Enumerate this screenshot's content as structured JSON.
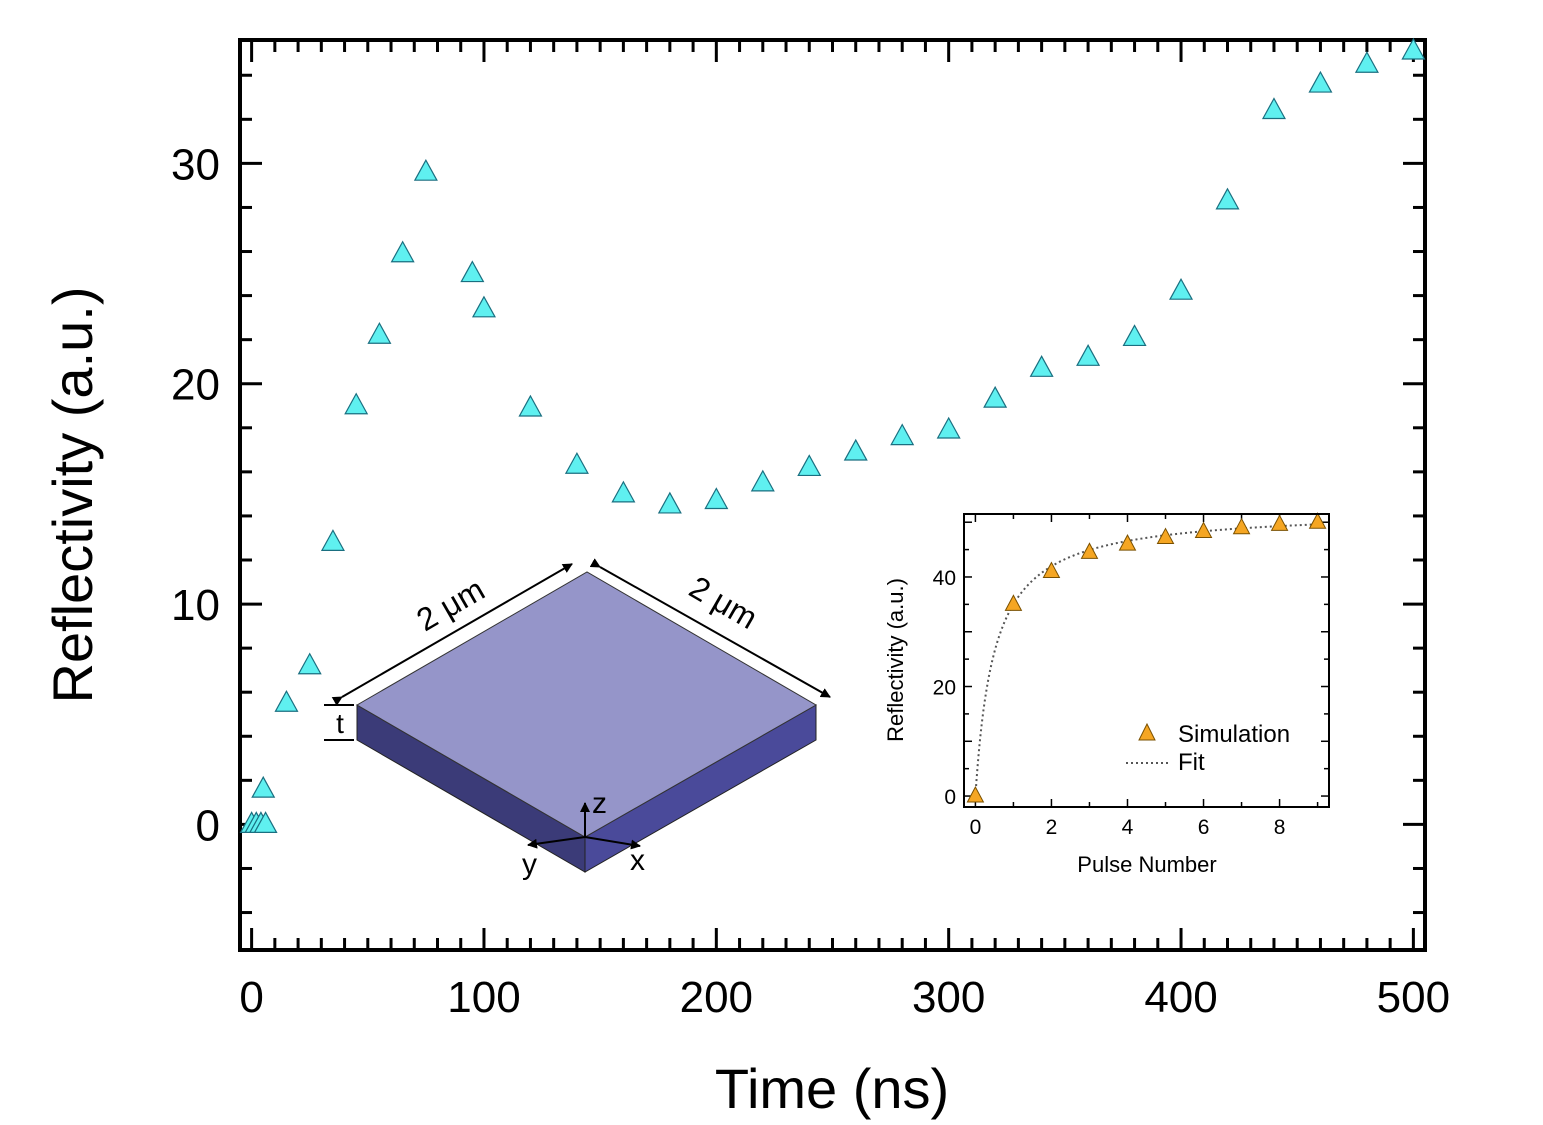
{
  "chart_data": [
    {
      "id": "main",
      "type": "scatter",
      "title": "",
      "xlabel": "Time (ns)",
      "ylabel": "Reflectivity (a.u.)",
      "xlim": [
        -5,
        505
      ],
      "ylim": [
        -5.7,
        35.6
      ],
      "xticks": [
        0,
        100,
        200,
        300,
        400,
        500
      ],
      "yticks": [
        0,
        10,
        20,
        30
      ],
      "grid": false,
      "marker": "triangle",
      "marker_color": "#5ff0f0",
      "series": [
        {
          "name": "Reflectivity",
          "x": [
            0,
            2,
            4,
            5,
            6,
            15,
            25,
            35,
            45,
            55,
            65,
            75,
            95,
            100,
            120,
            140,
            160,
            180,
            200,
            220,
            240,
            260,
            280,
            300,
            320,
            340,
            360,
            380,
            400,
            420,
            440,
            460,
            480,
            500
          ],
          "y": [
            0,
            0,
            0,
            1.6,
            0,
            5.5,
            7.2,
            12.8,
            19.0,
            22.2,
            25.9,
            29.6,
            25.0,
            23.4,
            18.9,
            16.3,
            15.0,
            14.5,
            14.7,
            15.5,
            16.2,
            16.9,
            17.6,
            17.9,
            19.3,
            20.7,
            21.2,
            22.1,
            24.2,
            28.3,
            32.4,
            33.6,
            34.5,
            35.1
          ]
        }
      ]
    },
    {
      "id": "inset",
      "type": "scatter",
      "title": "",
      "xlabel": "Pulse Number",
      "ylabel": "Reflectivity (a.u.)",
      "xlim": [
        -0.3,
        9.3
      ],
      "ylim": [
        -2,
        51.5
      ],
      "xticks": [
        0,
        2,
        4,
        6,
        8
      ],
      "yticks": [
        0,
        20,
        40
      ],
      "grid": false,
      "legend_position": "bottom-right",
      "series": [
        {
          "name": "Simulation",
          "style": "triangle",
          "color": "#f5a623",
          "x": [
            0,
            1,
            2,
            3,
            4,
            5,
            6,
            7,
            8,
            9
          ],
          "y": [
            0,
            35.0,
            41.0,
            44.5,
            46.0,
            47.2,
            48.3,
            49.0,
            49.6,
            50.0
          ]
        },
        {
          "name": "Fit",
          "style": "dotted-line",
          "color": "#555555",
          "formula": "52.34 * x / (x + 0.4953)"
        }
      ]
    }
  ],
  "diagram": {
    "dimension_1": "2 μm",
    "dimension_2": "2 μm",
    "thickness_label": "t",
    "axis_z": "z",
    "axis_y": "y",
    "axis_x": "x",
    "top_color": "#9595c9",
    "left_face_color": "#3b3b78",
    "right_face_color": "#4a4a9a"
  }
}
